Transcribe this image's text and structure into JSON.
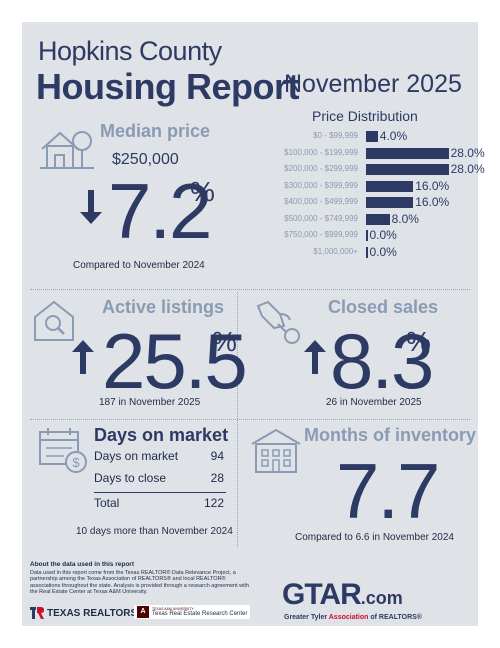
{
  "header": {
    "county": "Hopkins County",
    "report": "Housing Report",
    "month": "November 2025"
  },
  "price_distribution": {
    "title": "Price Distribution",
    "rows": [
      {
        "label": "$0 - $99,999",
        "value": "4.0%",
        "pct": 4.0
      },
      {
        "label": "$100,000 - $199,999",
        "value": "28.0%",
        "pct": 28.0
      },
      {
        "label": "$200,000 - $299,999",
        "value": "28.0%",
        "pct": 28.0
      },
      {
        "label": "$300,000 - $399,999",
        "value": "16.0%",
        "pct": 16.0
      },
      {
        "label": "$400,000 - $499,999",
        "value": "16.0%",
        "pct": 16.0
      },
      {
        "label": "$500,000 - $749,999",
        "value": "8.0%",
        "pct": 8.0
      },
      {
        "label": "$750,000 - $999,999",
        "value": "0.0%",
        "pct": 0.0
      },
      {
        "label": "$1,000,000+",
        "value": "0.0%",
        "pct": 0.0
      }
    ]
  },
  "median_price": {
    "label": "Median price",
    "price": "$250,000",
    "change": "7.2",
    "pct_sign": "%",
    "direction": "down",
    "caption": "Compared to November 2024"
  },
  "active_listings": {
    "label": "Active listings",
    "change": "25.5",
    "pct_sign": "%",
    "direction": "up",
    "caption": "187 in November 2025"
  },
  "closed_sales": {
    "label": "Closed sales",
    "change": "8.3",
    "pct_sign": "%",
    "direction": "up",
    "caption": "26 in November 2025"
  },
  "days_on_market": {
    "label": "Days on market",
    "rows": [
      {
        "label": "Days on market",
        "value": "94"
      },
      {
        "label": "Days to close",
        "value": "28"
      }
    ],
    "total_label": "Total",
    "total_value": "122",
    "caption": "10 days more than November 2024"
  },
  "months_inventory": {
    "label": "Months of inventory",
    "value": "7.7",
    "caption": "Compared to 6.6 in November 2024"
  },
  "about": {
    "title": "About the data used in this report",
    "text": "Data used in this report come from the Texas REALTOR® Data Relevance Project, a partnership among the Texas Association of REALTORS® and local REALTOR® associations throughout the state. Analysis is provided through a research agreement with the Real Estate Center at Texas A&M University."
  },
  "logos": {
    "texas_realtors": "TEXAS REALTORS",
    "tamu_small": "TEXAS A&M UNIVERSITY",
    "tamu_center": "Texas Real Estate Research Center",
    "gtar": "GTAR",
    "gtar_com": ".com",
    "gtar_tagline_pre": "Greater Tyler ",
    "gtar_tagline_mid": "Association",
    "gtar_tagline_post": " of REALTORS®"
  },
  "colors": {
    "navy": "#2d3a63",
    "slate": "#8a9bb4",
    "background": "#dfe2e7",
    "gtar_red": "#c8102e"
  }
}
